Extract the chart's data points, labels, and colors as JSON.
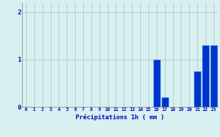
{
  "hours": [
    0,
    1,
    2,
    3,
    4,
    5,
    6,
    7,
    8,
    9,
    10,
    11,
    12,
    13,
    14,
    15,
    16,
    17,
    18,
    19,
    20,
    21,
    22,
    23
  ],
  "values": [
    0,
    0,
    0,
    0,
    0,
    0,
    0,
    0,
    0,
    0,
    0,
    0,
    0,
    0,
    0,
    0,
    1.0,
    0.2,
    0,
    0,
    0,
    0.75,
    1.3,
    1.3
  ],
  "bar_color": "#0033cc",
  "bar_edge_color": "#3399ff",
  "background_color": "#d8f0f0",
  "grid_color": "#b8cccc",
  "xlabel": "Précipitations 1h ( mm )",
  "xlabel_color": "#0000bb",
  "tick_color": "#0000bb",
  "ylim": [
    0,
    2.2
  ],
  "yticks": [
    0,
    1,
    2
  ],
  "bar_width": 0.85
}
